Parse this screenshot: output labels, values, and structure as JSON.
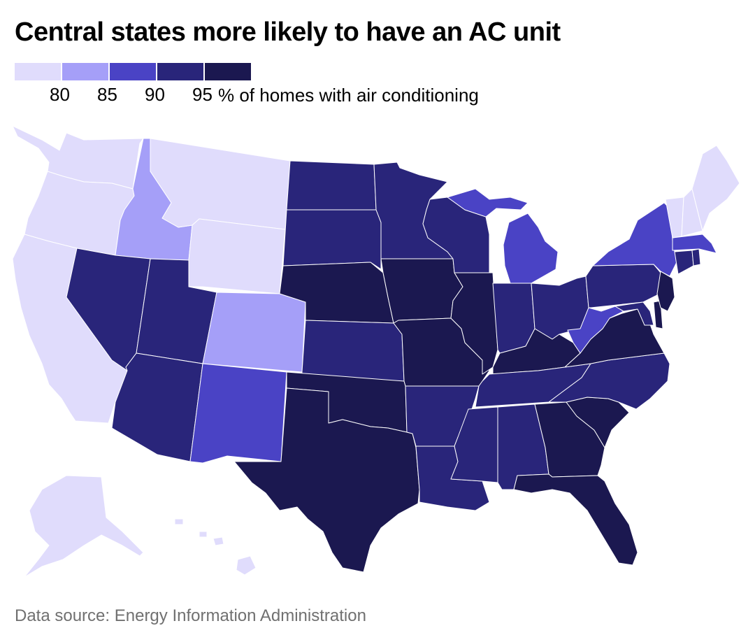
{
  "title": "Central states more likely to have an AC unit",
  "legend": {
    "ticks": [
      "80",
      "85",
      "90",
      "95"
    ],
    "unit_label": "% of homes with air conditioning",
    "colors": [
      "#e0dcfc",
      "#a59ff8",
      "#4a43c5",
      "#29257a",
      "#1b1850"
    ]
  },
  "source": "Data source: Energy Information Administration",
  "map_colors": {
    "lightest": "#e0dcfc",
    "light": "#a59ff8",
    "medium": "#4a43c5",
    "dark": "#29257a",
    "darkest": "#1b1850"
  },
  "states": {
    "washington": "lightest",
    "oregon": "lightest",
    "california": "lightest",
    "idaho": "light",
    "montana": "lightest",
    "wyoming": "lightest",
    "nevada": "dark",
    "utah": "dark",
    "arizona": "dark",
    "colorado": "light",
    "new-mexico": "medium",
    "north-dakota": "dark",
    "south-dakota": "dark",
    "nebraska": "darkest",
    "kansas": "dark",
    "oklahoma": "darkest",
    "texas": "darkest",
    "minnesota": "dark",
    "iowa": "darkest",
    "missouri": "darkest",
    "arkansas": "dark",
    "louisiana": "dark",
    "wisconsin": "dark",
    "illinois": "darkest",
    "michigan": "medium",
    "indiana": "dark",
    "ohio": "dark",
    "kentucky": "darkest",
    "tennessee": "dark",
    "mississippi": "dark",
    "alabama": "dark",
    "georgia": "darkest",
    "florida": "darkest",
    "south-carolina": "darkest",
    "north-carolina": "dark",
    "virginia": "darkest",
    "west-virginia": "medium",
    "pennsylvania": "dark",
    "new-york": "medium",
    "maryland": "dark",
    "delaware": "darkest",
    "new-jersey": "darkest",
    "connecticut": "dark",
    "rhode-island": "dark",
    "massachusetts": "medium",
    "vermont": "lightest",
    "new-hampshire": "lightest",
    "maine": "lightest",
    "alaska": "lightest",
    "hawaii": "lightest"
  }
}
